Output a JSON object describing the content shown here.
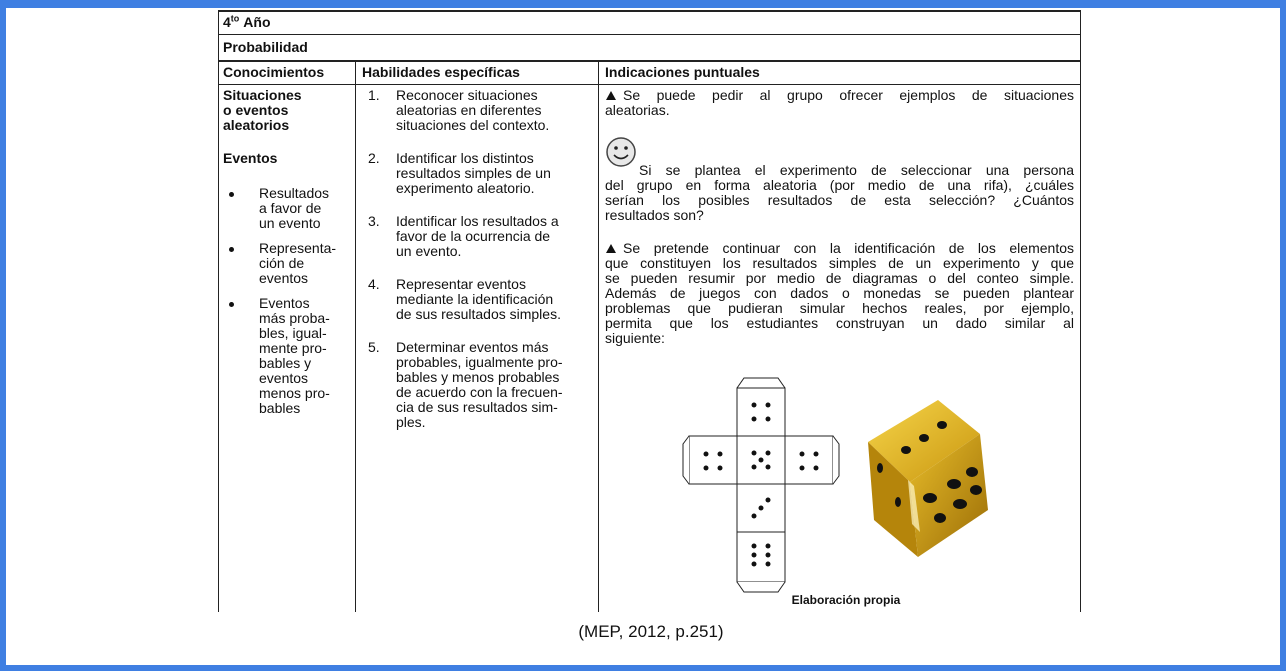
{
  "header": {
    "grade_number": "4",
    "grade_suffix": "to",
    "grade_word": "Año"
  },
  "section": "Probabilidad",
  "table": {
    "columns": [
      "Conocimientos",
      "Habilidades específicas",
      "Indicaciones puntuales"
    ],
    "conocimientos": {
      "topic_lines": [
        "Situaciones",
        "o eventos",
        "aleatorios"
      ],
      "subtopic": "Eventos",
      "items": [
        [
          "Resultados",
          "a favor de",
          "un evento"
        ],
        [
          "Representa-",
          "ción de",
          "eventos"
        ],
        [
          "Eventos",
          "más proba-",
          "bles, igual-",
          "mente pro-",
          "bables y",
          "eventos",
          "menos pro-",
          "bables"
        ]
      ]
    },
    "habilidades": [
      {
        "number": "1.",
        "lines": [
          "Reconocer situaciones",
          "aleatorias en diferentes",
          "situaciones del contexto."
        ]
      },
      {
        "number": "2.",
        "lines": [
          "Identificar los distintos",
          "resultados simples de un",
          "experimento aleatorio."
        ]
      },
      {
        "number": "3.",
        "lines": [
          "Identificar los resultados a",
          "favor de la ocurrencia de",
          "un evento."
        ]
      },
      {
        "number": "4.",
        "lines": [
          "Representar eventos",
          "mediante la identificación",
          "de sus resultados simples."
        ]
      },
      {
        "number": "5.",
        "lines": [
          "Determinar eventos más",
          "probables, igualmente pro-",
          "bables y menos probables",
          "de acuerdo con la frecuen-",
          "cia de sus resultados sim-",
          "ples."
        ]
      }
    ],
    "indicaciones": [
      [
        "Se puede pedir al grupo ofrecer ejemplos de situaciones",
        "aleatorias."
      ],
      [
        "Si se plantea el experimento de seleccionar una persona",
        "del grupo en forma aleatoria (por medio de una rifa), ¿cuáles",
        "serían los posibles resultados de esta selección? ¿Cuántos",
        "resultados son?"
      ],
      [
        "Se pretende continuar con la identificación de los elementos",
        "que constituyen los resultados simples de un experimento y que",
        "se pueden resumir por medio de diagramas o del conteo simple.",
        "Además de juegos con dados o monedas se pueden plantear",
        "problemas que pudieran simular hechos reales, por ejemplo,",
        "permita que los estudiantes construyan un dado similar al",
        "siguiente:"
      ]
    ],
    "figure_caption": "Elaboración propia"
  },
  "caption": "(MEP, 2012, p.251)"
}
